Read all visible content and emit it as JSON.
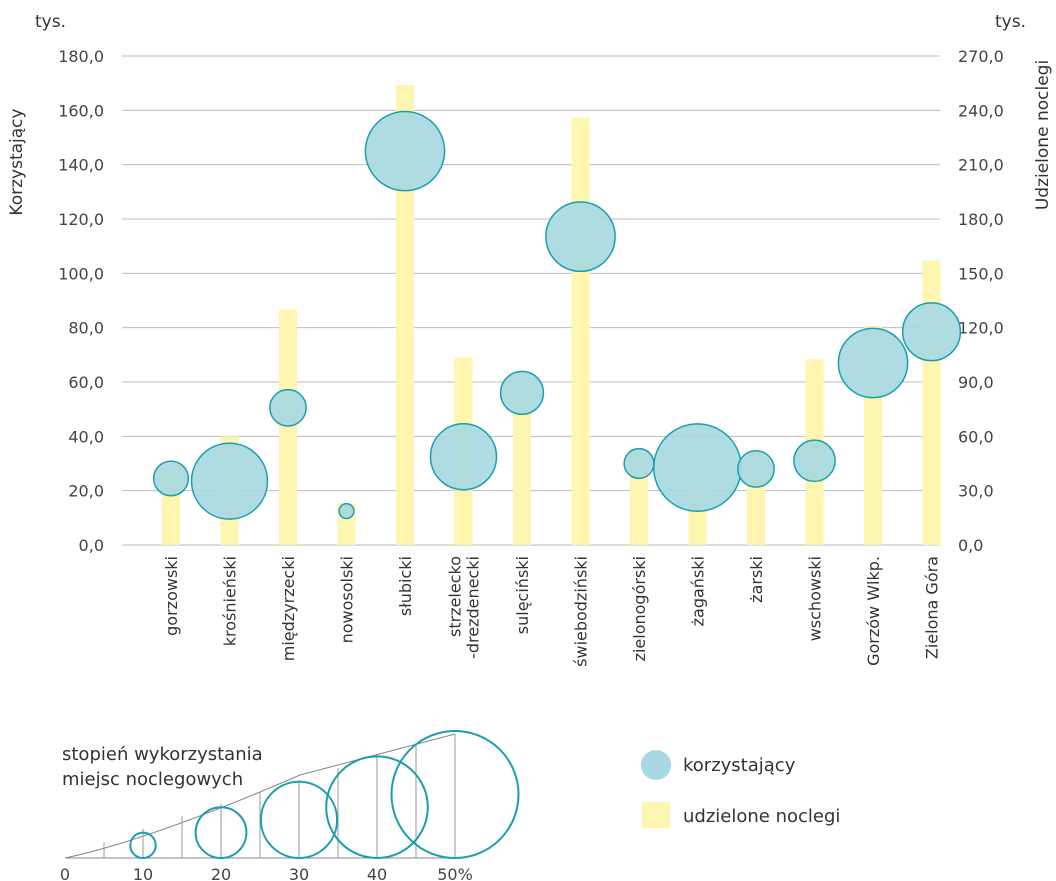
{
  "chart_data": {
    "type": "bubble-bar",
    "categories": [
      "gorzowski",
      "krośnieński",
      "międzyrzecki",
      "nowosolski",
      "słubicki",
      "strzelecko\n-drezdenecki",
      "sulęciński",
      "świebodziński",
      "zielonogórski",
      "żagański",
      "żarski",
      "wschowski",
      "Gorzów Wlkp.",
      "Zielona Góra"
    ],
    "series": [
      {
        "name": "korzystający",
        "axis": "left",
        "values": [
          24.5,
          23.5,
          50.5,
          12.5,
          145.0,
          32.5,
          56.0,
          113.5,
          30.0,
          28.5,
          28.0,
          31.0,
          67.0,
          78.5
        ],
        "color": "#a8d8e1",
        "stroke": "#1a9fad"
      },
      {
        "name": "udzielone noclegi",
        "axis": "right",
        "values": [
          42.0,
          60.0,
          130.0,
          23.0,
          254.0,
          103.5,
          92.0,
          236.0,
          53.0,
          38.5,
          51.5,
          102.5,
          121.0,
          157.0
        ],
        "color": "#fdf5b0"
      }
    ],
    "bubble_size": {
      "label": "stopień wykorzystania miejsc noclegowych",
      "values": [
        10.5,
        23,
        11,
        4.5,
        24,
        20,
        13,
        21,
        9,
        26.5,
        11,
        12.5,
        21,
        17.5
      ]
    },
    "left_axis": {
      "label": "Korzystający",
      "unit": "tys.",
      "ticks": [
        "0,0",
        "20,0",
        "40,0",
        "60,0",
        "80,0",
        "100,0",
        "120,0",
        "140,0",
        "160,0",
        "180,0"
      ],
      "ylim": [
        0,
        180
      ]
    },
    "right_axis": {
      "label": "Udzielone noclegi",
      "unit": "tys.",
      "ticks": [
        "0,0",
        "30,0",
        "60,0",
        "90,0",
        "120,0",
        "150,0",
        "180,0",
        "210,0",
        "240,0",
        "270,0"
      ],
      "ylim": [
        0,
        270
      ]
    },
    "grid": true,
    "legend": [
      {
        "label": "korzystający",
        "shape": "circle",
        "color": "#a8d8e1"
      },
      {
        "label": "udzielone noclegi",
        "shape": "square",
        "color": "#fdf5b0"
      }
    ],
    "size_scale": {
      "title_line1": "stopień wykorzystania",
      "title_line2": "miejsc noclegowych",
      "values": [
        10,
        20,
        30,
        40,
        50
      ],
      "tick_labels": [
        "0",
        "10",
        "20",
        "30",
        "40",
        "50%"
      ]
    }
  }
}
